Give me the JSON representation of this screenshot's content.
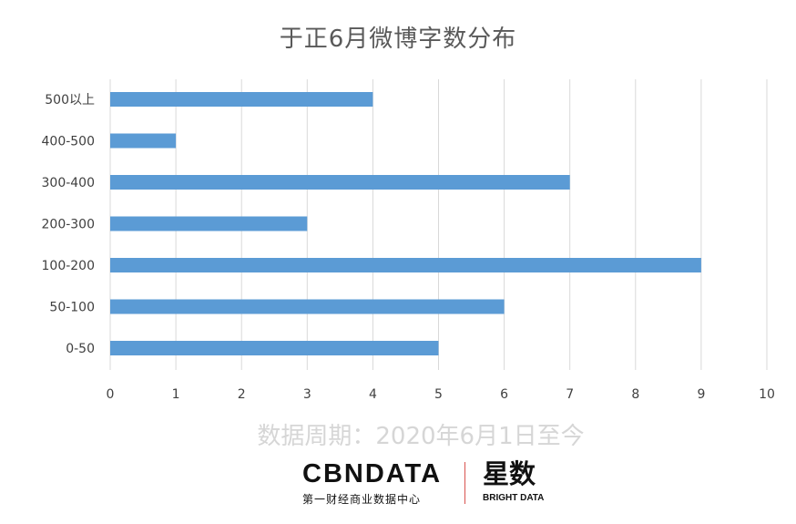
{
  "chart_data": {
    "type": "bar",
    "orientation": "horizontal",
    "title": "于正6月微博字数分布",
    "categories": [
      "500以上",
      "400-500",
      "300-400",
      "200-300",
      "100-200",
      "50-100",
      "0-50"
    ],
    "values": [
      4,
      1,
      7,
      3,
      9,
      6,
      5
    ],
    "xlim": [
      0,
      10
    ],
    "xticks": [
      "0",
      "1",
      "2",
      "3",
      "4",
      "5",
      "6",
      "7",
      "8",
      "9",
      "10"
    ],
    "grid": "vertical",
    "bar_color": "#5b9bd5"
  },
  "caption": "数据周期：2020年6月1日至今",
  "brand": {
    "left_logo": "CBNDATA",
    "left_sub": "第一财经商业数据中心",
    "right_logo": "星数",
    "right_sub": "BRIGHT DATA"
  }
}
